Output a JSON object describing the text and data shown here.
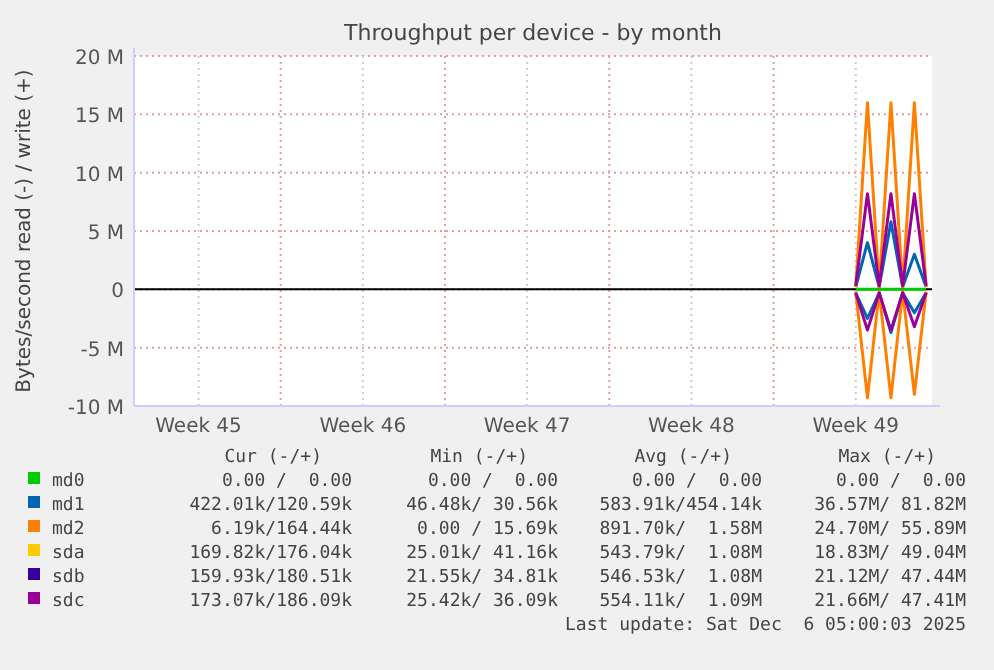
{
  "chart_data": {
    "type": "line",
    "title": "Throughput per device - by month",
    "ylabel": "Bytes/second read (-) / write (+)",
    "categories": [
      null,
      null,
      null,
      null,
      null,
      "Week 45",
      null,
      null,
      null,
      null,
      null,
      null,
      null,
      null,
      null,
      null,
      null,
      null,
      null,
      "Week 46",
      null,
      null,
      null,
      null,
      null,
      null,
      null,
      null,
      null,
      null,
      null,
      null,
      null,
      "Week 47",
      null,
      null,
      null,
      null,
      null,
      null,
      null,
      null,
      null,
      null,
      null,
      null,
      null,
      "Week 48",
      null,
      null,
      null,
      null,
      null,
      null,
      null,
      null,
      null,
      null,
      null,
      null,
      null,
      "Week 49",
      null,
      null,
      null,
      null,
      null,
      null
    ],
    "ylim": [
      -10,
      20
    ],
    "yticks": [
      {
        "value": -10,
        "label": "-10 M"
      },
      {
        "value": -5,
        "label": "-5 M"
      },
      {
        "value": 0,
        "label": "0"
      },
      {
        "value": 5,
        "label": "5 M"
      },
      {
        "value": 10,
        "label": "10 M"
      },
      {
        "value": 15,
        "label": "15 M"
      },
      {
        "value": 20,
        "label": "20 M"
      }
    ],
    "grid": true,
    "legend": "bottom",
    "marker": "none",
    "line_style": "solid",
    "ref_lines": [
      {
        "axis": "y",
        "value": 0,
        "color": "#000000"
      }
    ],
    "series": [
      {
        "name": "md0",
        "color": "#00cc00",
        "values": [
          null,
          null,
          null,
          null,
          null,
          null,
          null,
          null,
          null,
          null,
          null,
          null,
          null,
          null,
          null,
          null,
          null,
          null,
          null,
          null,
          null,
          null,
          null,
          null,
          null,
          null,
          null,
          null,
          null,
          null,
          null,
          null,
          null,
          null,
          null,
          null,
          null,
          null,
          null,
          null,
          null,
          null,
          null,
          null,
          null,
          null,
          null,
          null,
          null,
          null,
          null,
          null,
          null,
          null,
          null,
          null,
          null,
          null,
          null,
          null,
          null,
          0,
          0,
          0,
          0,
          0,
          0,
          0
        ]
      },
      {
        "name": "md1",
        "color": "#0066b3",
        "values": [
          null,
          null,
          null,
          null,
          null,
          null,
          null,
          null,
          null,
          null,
          null,
          null,
          null,
          null,
          null,
          null,
          null,
          null,
          null,
          null,
          null,
          null,
          null,
          null,
          null,
          null,
          null,
          null,
          null,
          null,
          null,
          null,
          null,
          null,
          null,
          null,
          null,
          null,
          null,
          null,
          null,
          null,
          null,
          null,
          null,
          null,
          null,
          null,
          null,
          null,
          null,
          null,
          null,
          null,
          null,
          null,
          null,
          null,
          null,
          null,
          null,
          0.2,
          4,
          0.2,
          5.8,
          0.2,
          3,
          0.2
        ]
      },
      {
        "color": "#0066b3",
        "values": [
          null,
          null,
          null,
          null,
          null,
          null,
          null,
          null,
          null,
          null,
          null,
          null,
          null,
          null,
          null,
          null,
          null,
          null,
          null,
          null,
          null,
          null,
          null,
          null,
          null,
          null,
          null,
          null,
          null,
          null,
          null,
          null,
          null,
          null,
          null,
          null,
          null,
          null,
          null,
          null,
          null,
          null,
          null,
          null,
          null,
          null,
          null,
          null,
          null,
          null,
          null,
          null,
          null,
          null,
          null,
          null,
          null,
          null,
          null,
          null,
          null,
          -0.3,
          -2.5,
          -0.3,
          -3.7,
          -0.3,
          -2,
          -0.3
        ]
      },
      {
        "name": "md2",
        "color": "#ff8000",
        "values": [
          null,
          null,
          null,
          null,
          null,
          null,
          null,
          null,
          null,
          null,
          null,
          null,
          null,
          null,
          null,
          null,
          null,
          null,
          null,
          null,
          null,
          null,
          null,
          null,
          null,
          null,
          null,
          null,
          null,
          null,
          null,
          null,
          null,
          null,
          null,
          null,
          null,
          null,
          null,
          null,
          null,
          null,
          null,
          null,
          null,
          null,
          null,
          null,
          null,
          null,
          null,
          null,
          null,
          null,
          null,
          null,
          null,
          null,
          null,
          null,
          null,
          0.2,
          16,
          0.2,
          16,
          0.2,
          16,
          0.2
        ]
      },
      {
        "color": "#ff8000",
        "values": [
          null,
          null,
          null,
          null,
          null,
          null,
          null,
          null,
          null,
          null,
          null,
          null,
          null,
          null,
          null,
          null,
          null,
          null,
          null,
          null,
          null,
          null,
          null,
          null,
          null,
          null,
          null,
          null,
          null,
          null,
          null,
          null,
          null,
          null,
          null,
          null,
          null,
          null,
          null,
          null,
          null,
          null,
          null,
          null,
          null,
          null,
          null,
          null,
          null,
          null,
          null,
          null,
          null,
          null,
          null,
          null,
          null,
          null,
          null,
          null,
          null,
          -0.2,
          -9.3,
          -0.2,
          -9.3,
          -0.2,
          -9,
          -0.2
        ]
      },
      {
        "name": "sda",
        "color": "#ffcc00",
        "values": [
          null,
          null,
          null,
          null,
          null,
          null,
          null,
          null,
          null,
          null,
          null,
          null,
          null,
          null,
          null,
          null,
          null,
          null,
          null,
          null,
          null,
          null,
          null,
          null,
          null,
          null,
          null,
          null,
          null,
          null,
          null,
          null,
          null,
          null,
          null,
          null,
          null,
          null,
          null,
          null,
          null,
          null,
          null,
          null,
          null,
          null,
          null,
          null,
          null,
          null,
          null,
          null,
          null,
          null,
          null,
          null,
          null,
          null,
          null,
          null,
          null,
          null,
          null,
          null,
          null,
          null,
          null,
          null
        ]
      },
      {
        "color": "#ffcc00",
        "values": [
          null,
          null,
          null,
          null,
          null,
          null,
          null,
          null,
          null,
          null,
          null,
          null,
          null,
          null,
          null,
          null,
          null,
          null,
          null,
          null,
          null,
          null,
          null,
          null,
          null,
          null,
          null,
          null,
          null,
          null,
          null,
          null,
          null,
          null,
          null,
          null,
          null,
          null,
          null,
          null,
          null,
          null,
          null,
          null,
          null,
          null,
          null,
          null,
          null,
          null,
          null,
          null,
          null,
          null,
          null,
          null,
          null,
          null,
          null,
          null,
          null,
          null,
          null,
          null,
          null,
          null,
          null,
          null
        ]
      },
      {
        "name": "sdb",
        "color": "#330099",
        "values": [
          null,
          null,
          null,
          null,
          null,
          null,
          null,
          null,
          null,
          null,
          null,
          null,
          null,
          null,
          null,
          null,
          null,
          null,
          null,
          null,
          null,
          null,
          null,
          null,
          null,
          null,
          null,
          null,
          null,
          null,
          null,
          null,
          null,
          null,
          null,
          null,
          null,
          null,
          null,
          null,
          null,
          null,
          null,
          null,
          null,
          null,
          null,
          null,
          null,
          null,
          null,
          null,
          null,
          null,
          null,
          null,
          null,
          null,
          null,
          null,
          null,
          null,
          null,
          null,
          null,
          null,
          null,
          null
        ]
      },
      {
        "color": "#330099",
        "values": [
          null,
          null,
          null,
          null,
          null,
          null,
          null,
          null,
          null,
          null,
          null,
          null,
          null,
          null,
          null,
          null,
          null,
          null,
          null,
          null,
          null,
          null,
          null,
          null,
          null,
          null,
          null,
          null,
          null,
          null,
          null,
          null,
          null,
          null,
          null,
          null,
          null,
          null,
          null,
          null,
          null,
          null,
          null,
          null,
          null,
          null,
          null,
          null,
          null,
          null,
          null,
          null,
          null,
          null,
          null,
          null,
          null,
          null,
          null,
          null,
          null,
          null,
          null,
          null,
          null,
          null,
          null,
          null
        ]
      },
      {
        "name": "sdc",
        "color": "#990099",
        "values": [
          null,
          null,
          null,
          null,
          null,
          null,
          null,
          null,
          null,
          null,
          null,
          null,
          null,
          null,
          null,
          null,
          null,
          null,
          null,
          null,
          null,
          null,
          null,
          null,
          null,
          null,
          null,
          null,
          null,
          null,
          null,
          null,
          null,
          null,
          null,
          null,
          null,
          null,
          null,
          null,
          null,
          null,
          null,
          null,
          null,
          null,
          null,
          null,
          null,
          null,
          null,
          null,
          null,
          null,
          null,
          null,
          null,
          null,
          null,
          null,
          null,
          0.3,
          8.2,
          0.3,
          8.2,
          0.3,
          8.2,
          0.3
        ]
      },
      {
        "color": "#990099",
        "values": [
          null,
          null,
          null,
          null,
          null,
          null,
          null,
          null,
          null,
          null,
          null,
          null,
          null,
          null,
          null,
          null,
          null,
          null,
          null,
          null,
          null,
          null,
          null,
          null,
          null,
          null,
          null,
          null,
          null,
          null,
          null,
          null,
          null,
          null,
          null,
          null,
          null,
          null,
          null,
          null,
          null,
          null,
          null,
          null,
          null,
          null,
          null,
          null,
          null,
          null,
          null,
          null,
          null,
          null,
          null,
          null,
          null,
          null,
          null,
          null,
          null,
          -0.3,
          -3.5,
          -0.3,
          -3.5,
          -0.3,
          -3.2,
          -0.3
        ]
      }
    ],
    "annotations": [
      "Cur (-/+)",
      "Min (-/+)",
      "Avg (-/+)",
      "Max (-/+)",
      "0.00 /  0.00",
      "0.00 /  0.00",
      "0.00 /  0.00",
      "0.00 /  0.00",
      "422.01k/120.59k",
      "46.48k/ 30.56k",
      "583.91k/454.14k",
      "36.57M/ 81.82M",
      "6.19k/164.44k",
      "0.00 / 15.69k",
      "891.70k/  1.58M",
      "24.70M/ 55.89M",
      "169.82k/176.04k",
      "25.01k/ 41.16k",
      "543.79k/  1.08M",
      "18.83M/ 49.04M",
      "159.93k/180.51k",
      "21.55k/ 34.81k",
      "546.53k/  1.08M",
      "21.12M/ 47.44M",
      "173.07k/186.09k",
      "25.42k/ 36.09k",
      "554.11k/  1.09M",
      "21.66M/ 47.41M",
      "Last update: Sat Dec  6 05:00:03 2025"
    ]
  }
}
